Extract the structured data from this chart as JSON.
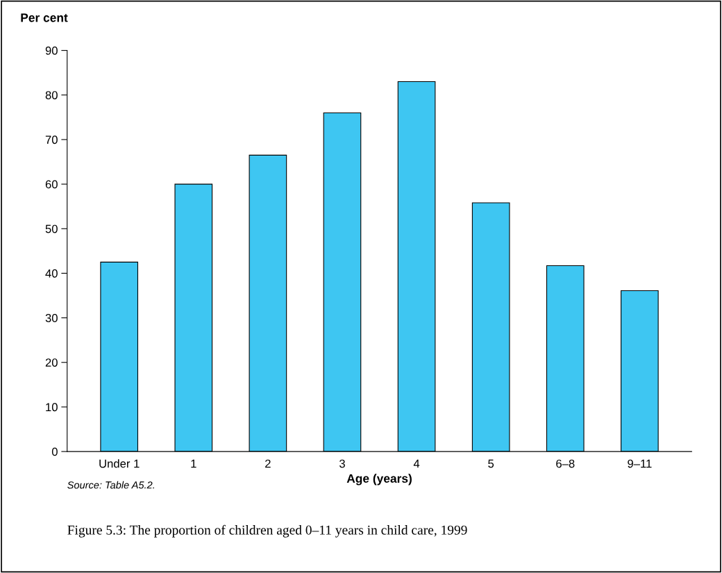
{
  "chart_data": {
    "type": "bar",
    "ylabel": "Per cent",
    "xlabel": "Age (years)",
    "categories": [
      "Under 1",
      "1",
      "2",
      "3",
      "4",
      "5",
      "6–8",
      "9–11"
    ],
    "values": [
      42.5,
      60,
      66.5,
      76,
      83,
      55.8,
      41.7,
      36.1
    ],
    "color": "#3ec6f2",
    "ylim": [
      0,
      90
    ],
    "yticks": [
      0,
      10,
      20,
      30,
      40,
      50,
      60,
      70,
      80,
      90
    ],
    "grid": false,
    "annotations": [
      "Source: Table A5.2.",
      "Figure 5.3: The proportion of children aged 0–11 years in child care, 1999"
    ]
  }
}
